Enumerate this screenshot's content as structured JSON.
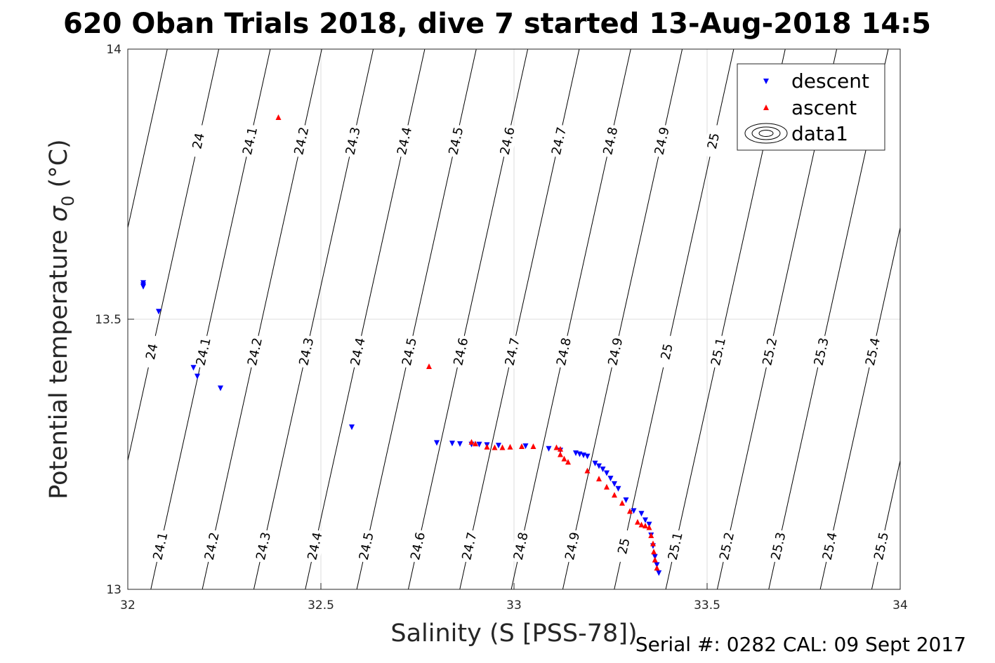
{
  "chart_data": {
    "type": "scatter",
    "title": "620 Oban Trials 2018, dive 7 started 13-Aug-2018 14:5",
    "xlabel": "Salinity (S [PSS-78])",
    "ylabel_main": "Potential temperature ",
    "ylabel_sigma": "σ",
    "ylabel_sub": "0",
    "ylabel_unit": " (°C)",
    "xlim": [
      32,
      34
    ],
    "ylim": [
      13,
      14
    ],
    "xticks": [
      "32",
      "32.5",
      "33",
      "33.5",
      "34"
    ],
    "yticks": [
      "13",
      "13.5",
      "14"
    ],
    "grid": true,
    "legend_position": "top-right",
    "contour_levels": [
      24.0,
      24.1,
      24.2,
      24.3,
      24.4,
      24.5,
      24.6,
      24.7,
      24.8,
      24.9,
      25.0,
      25.1,
      25.2,
      25.3,
      25.4,
      25.5
    ],
    "contour_label_texts": [
      "24",
      "24.1",
      "24.2",
      "24.3",
      "24.4",
      "24.5",
      "24.6",
      "24.7",
      "24.8",
      "24.9",
      "25",
      "25.1",
      "25.2",
      "25.3",
      "25.4",
      "25.5"
    ],
    "series": [
      {
        "name": "descent",
        "marker": "triangle-down",
        "color": "#0000ff",
        "points": [
          [
            32.04,
            13.567
          ],
          [
            32.04,
            13.563
          ],
          [
            32.04,
            13.56
          ],
          [
            32.08,
            13.514
          ],
          [
            32.17,
            13.41
          ],
          [
            32.18,
            13.394
          ],
          [
            32.24,
            13.372
          ],
          [
            32.58,
            13.3
          ],
          [
            32.8,
            13.271
          ],
          [
            32.84,
            13.27
          ],
          [
            32.86,
            13.269
          ],
          [
            32.89,
            13.268
          ],
          [
            32.91,
            13.268
          ],
          [
            32.93,
            13.267
          ],
          [
            32.96,
            13.266
          ],
          [
            33.03,
            13.265
          ],
          [
            33.09,
            13.26
          ],
          [
            33.12,
            13.257
          ],
          [
            33.16,
            13.252
          ],
          [
            33.17,
            13.25
          ],
          [
            33.18,
            13.248
          ],
          [
            33.19,
            13.246
          ],
          [
            33.21,
            13.233
          ],
          [
            33.22,
            13.228
          ],
          [
            33.23,
            13.222
          ],
          [
            33.24,
            13.215
          ],
          [
            33.25,
            13.205
          ],
          [
            33.26,
            13.195
          ],
          [
            33.27,
            13.186
          ],
          [
            33.29,
            13.165
          ],
          [
            33.31,
            13.145
          ],
          [
            33.33,
            13.14
          ],
          [
            33.34,
            13.128
          ],
          [
            33.35,
            13.12
          ],
          [
            33.355,
            13.1
          ],
          [
            33.36,
            13.08
          ],
          [
            33.365,
            13.06
          ],
          [
            33.37,
            13.045
          ],
          [
            33.375,
            13.03
          ]
        ]
      },
      {
        "name": "ascent",
        "marker": "triangle-up",
        "color": "#ff0000",
        "points": [
          [
            32.39,
            13.874
          ],
          [
            32.78,
            13.413
          ],
          [
            32.89,
            13.273
          ],
          [
            32.9,
            13.27
          ],
          [
            32.93,
            13.264
          ],
          [
            32.95,
            13.263
          ],
          [
            32.97,
            13.263
          ],
          [
            32.99,
            13.264
          ],
          [
            33.02,
            13.265
          ],
          [
            33.05,
            13.265
          ],
          [
            33.11,
            13.263
          ],
          [
            33.12,
            13.26
          ],
          [
            33.12,
            13.25
          ],
          [
            33.13,
            13.242
          ],
          [
            33.14,
            13.236
          ],
          [
            33.19,
            13.22
          ],
          [
            33.22,
            13.205
          ],
          [
            33.24,
            13.19
          ],
          [
            33.26,
            13.175
          ],
          [
            33.28,
            13.16
          ],
          [
            33.3,
            13.145
          ],
          [
            33.32,
            13.125
          ],
          [
            33.33,
            13.12
          ],
          [
            33.34,
            13.118
          ],
          [
            33.35,
            13.115
          ],
          [
            33.355,
            13.1
          ],
          [
            33.36,
            13.085
          ],
          [
            33.362,
            13.07
          ],
          [
            33.365,
            13.055
          ],
          [
            33.37,
            13.04
          ]
        ]
      },
      {
        "name": "data1",
        "marker": "contour",
        "color": "#000000",
        "points": []
      }
    ]
  },
  "footer": "Serial #: 0282  CAL: 09 Sept 2017"
}
